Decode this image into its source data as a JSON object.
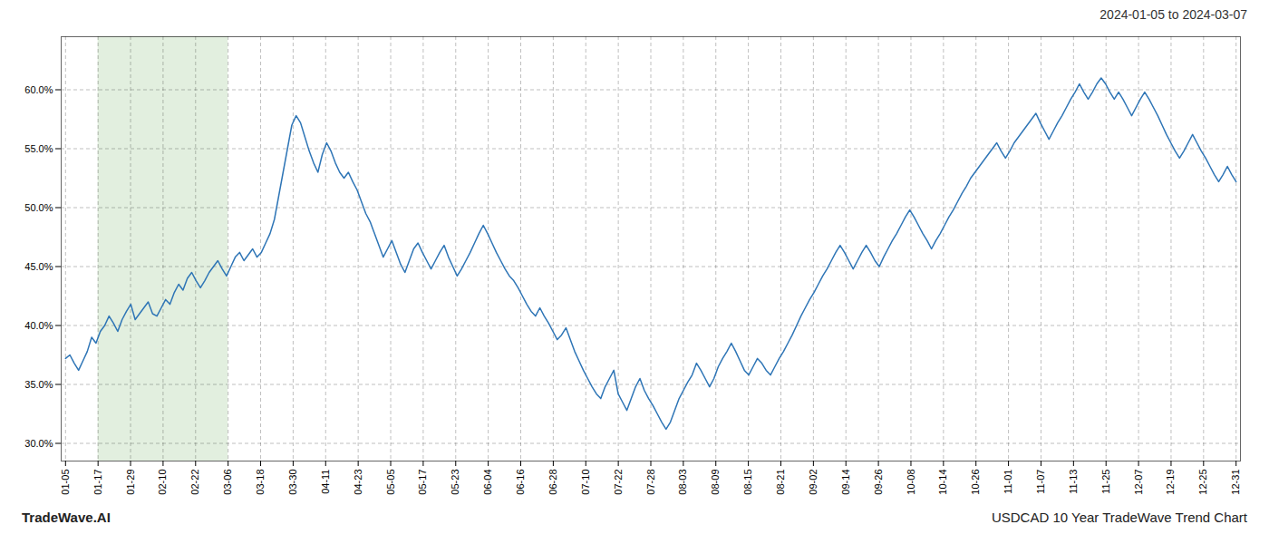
{
  "chart_data": {
    "type": "line",
    "title": "2024-01-05 to 2024-03-07",
    "annotations": [
      "TradeWave.AI",
      "USDCAD 10 Year TradeWave Trend Chart"
    ],
    "color": "#2e75b6",
    "grid": true,
    "xlim": [
      -1,
      270
    ],
    "xticks": [
      {
        "value": 0,
        "label": "01-05"
      },
      {
        "value": 7.472222222222222,
        "label": "01-17"
      },
      {
        "value": 14.944444444444445,
        "label": "01-29"
      },
      {
        "value": 22.416666666666668,
        "label": "02-10"
      },
      {
        "value": 29.88888888888889,
        "label": "02-22"
      },
      {
        "value": 37.361111111111114,
        "label": "03-06"
      },
      {
        "value": 44.833333333333336,
        "label": "03-18"
      },
      {
        "value": 52.30555555555556,
        "label": "03-30"
      },
      {
        "value": 59.77777777777778,
        "label": "04-11"
      },
      {
        "value": 67.25,
        "label": "04-23"
      },
      {
        "value": 74.72222222222223,
        "label": "05-05"
      },
      {
        "value": 82.19444444444444,
        "label": "05-17"
      },
      {
        "value": 89.66666666666667,
        "label": "05-23"
      },
      {
        "value": 97.13888888888889,
        "label": "06-04"
      },
      {
        "value": 104.61111111111111,
        "label": "06-16"
      },
      {
        "value": 112.08333333333334,
        "label": "06-28"
      },
      {
        "value": 119.55555555555556,
        "label": "07-10"
      },
      {
        "value": 127.02777777777779,
        "label": "07-22"
      },
      {
        "value": 134.5,
        "label": "07-28"
      },
      {
        "value": 141.97222222222223,
        "label": "08-03"
      },
      {
        "value": 149.44444444444446,
        "label": "08-09"
      },
      {
        "value": 156.91666666666669,
        "label": "08-15"
      },
      {
        "value": 164.38888888888889,
        "label": "08-21"
      },
      {
        "value": 171.86111111111111,
        "label": "09-02"
      },
      {
        "value": 179.33333333333334,
        "label": "09-14"
      },
      {
        "value": 186.80555555555557,
        "label": "09-26"
      },
      {
        "value": 194.27777777777777,
        "label": "10-08"
      },
      {
        "value": 201.75,
        "label": "10-14"
      },
      {
        "value": 209.22222222222223,
        "label": "10-26"
      },
      {
        "value": 216.69444444444446,
        "label": "11-01"
      },
      {
        "value": 224.16666666666669,
        "label": "11-07"
      },
      {
        "value": 231.63888888888889,
        "label": "11-13"
      },
      {
        "value": 239.11111111111111,
        "label": "11-25"
      },
      {
        "value": 246.58333333333334,
        "label": "12-07"
      },
      {
        "value": 254.05555555555557,
        "label": "12-19"
      },
      {
        "value": 261.52777777777777,
        "label": "12-25"
      },
      {
        "value": 269,
        "label": "12-31"
      }
    ],
    "ylim": [
      0.285,
      0.645
    ],
    "yticks": [
      {
        "value": 0.3,
        "label": "30.0%"
      },
      {
        "value": 0.35,
        "label": "35.0%"
      },
      {
        "value": 0.4,
        "label": "40.0%"
      },
      {
        "value": 0.45,
        "label": "45.0%"
      },
      {
        "value": 0.5,
        "label": "50.0%"
      },
      {
        "value": 0.55,
        "label": "55.0%"
      },
      {
        "value": 0.6,
        "label": "60.0%"
      }
    ],
    "shaded_region": {
      "from": "01-17",
      "to": "03-06",
      "color": "#c6e0c0"
    },
    "values": [
      0.372,
      0.375,
      0.368,
      0.362,
      0.37,
      0.378,
      0.39,
      0.385,
      0.395,
      0.4,
      0.408,
      0.402,
      0.395,
      0.405,
      0.412,
      0.418,
      0.405,
      0.41,
      0.415,
      0.42,
      0.41,
      0.408,
      0.415,
      0.422,
      0.418,
      0.428,
      0.435,
      0.43,
      0.44,
      0.445,
      0.438,
      0.432,
      0.438,
      0.445,
      0.45,
      0.455,
      0.448,
      0.442,
      0.45,
      0.458,
      0.462,
      0.455,
      0.46,
      0.465,
      0.458,
      0.462,
      0.47,
      0.478,
      0.49,
      0.51,
      0.53,
      0.55,
      0.57,
      0.578,
      0.572,
      0.56,
      0.548,
      0.538,
      0.53,
      0.545,
      0.555,
      0.548,
      0.538,
      0.53,
      0.525,
      0.53,
      0.522,
      0.515,
      0.505,
      0.495,
      0.488,
      0.478,
      0.468,
      0.458,
      0.465,
      0.472,
      0.462,
      0.452,
      0.445,
      0.455,
      0.465,
      0.47,
      0.462,
      0.455,
      0.448,
      0.455,
      0.462,
      0.468,
      0.458,
      0.45,
      0.442,
      0.448,
      0.455,
      0.462,
      0.47,
      0.478,
      0.485,
      0.478,
      0.47,
      0.462,
      0.455,
      0.448,
      0.442,
      0.438,
      0.432,
      0.425,
      0.418,
      0.412,
      0.408,
      0.415,
      0.408,
      0.402,
      0.395,
      0.388,
      0.392,
      0.398,
      0.388,
      0.378,
      0.37,
      0.362,
      0.355,
      0.348,
      0.342,
      0.338,
      0.348,
      0.355,
      0.362,
      0.342,
      0.335,
      0.328,
      0.338,
      0.348,
      0.355,
      0.345,
      0.338,
      0.332,
      0.325,
      0.318,
      0.312,
      0.318,
      0.328,
      0.338,
      0.345,
      0.352,
      0.358,
      0.368,
      0.362,
      0.355,
      0.348,
      0.355,
      0.365,
      0.372,
      0.378,
      0.385,
      0.378,
      0.37,
      0.362,
      0.358,
      0.365,
      0.372,
      0.368,
      0.362,
      0.358,
      0.365,
      0.372,
      0.378,
      0.385,
      0.392,
      0.4,
      0.408,
      0.415,
      0.422,
      0.428,
      0.435,
      0.442,
      0.448,
      0.455,
      0.462,
      0.468,
      0.462,
      0.455,
      0.448,
      0.455,
      0.462,
      0.468,
      0.462,
      0.455,
      0.45,
      0.458,
      0.465,
      0.472,
      0.478,
      0.485,
      0.492,
      0.498,
      0.492,
      0.485,
      0.478,
      0.472,
      0.465,
      0.472,
      0.478,
      0.485,
      0.492,
      0.498,
      0.505,
      0.512,
      0.518,
      0.525,
      0.53,
      0.535,
      0.54,
      0.545,
      0.55,
      0.555,
      0.548,
      0.542,
      0.548,
      0.555,
      0.56,
      0.565,
      0.57,
      0.575,
      0.58,
      0.572,
      0.565,
      0.558,
      0.565,
      0.572,
      0.578,
      0.585,
      0.592,
      0.598,
      0.605,
      0.598,
      0.592,
      0.598,
      0.605,
      0.61,
      0.605,
      0.598,
      0.592,
      0.598,
      0.592,
      0.585,
      0.578,
      0.585,
      0.592,
      0.598,
      0.592,
      0.585,
      0.578,
      0.57,
      0.562,
      0.555,
      0.548,
      0.542,
      0.548,
      0.555,
      0.562,
      0.555,
      0.548,
      0.542,
      0.535,
      0.528,
      0.522,
      0.528,
      0.535,
      0.528,
      0.522
    ]
  }
}
